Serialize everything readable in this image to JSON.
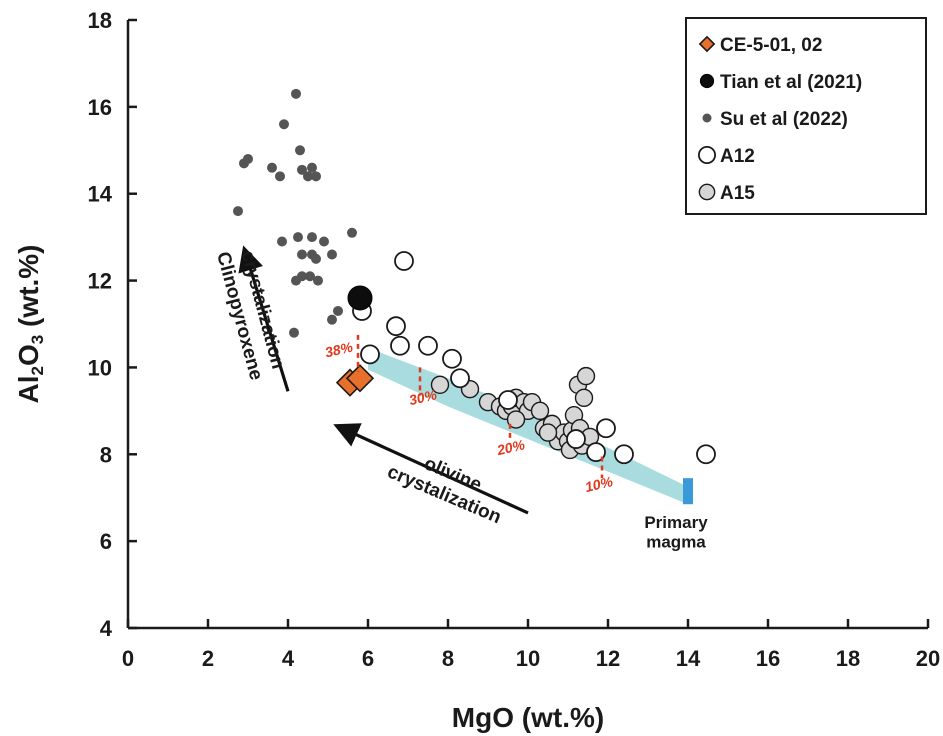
{
  "chart_data": {
    "type": "scatter",
    "xlabel": "MgO (wt.%)",
    "ylabel_main": "Al",
    "ylabel_sub": "2",
    "ylabel_mid": "O",
    "ylabel_sub2": "3",
    "ylabel_tail": " (wt.%)",
    "xlim": [
      0,
      20
    ],
    "ylim": [
      4,
      18
    ],
    "xticks": [
      0,
      2,
      4,
      6,
      8,
      10,
      12,
      14,
      16,
      18,
      20
    ],
    "yticks": [
      4,
      6,
      8,
      10,
      12,
      14,
      16,
      18
    ],
    "legend_position": "top-right",
    "series": [
      {
        "name": "CE-5-01, 02",
        "marker": "diamond",
        "color": "#e8702a",
        "points": [
          [
            5.55,
            9.65
          ],
          [
            5.8,
            9.75
          ]
        ]
      },
      {
        "name": "Tian et al (2021)",
        "marker": "circle-large",
        "color": "#0d0d0d",
        "points": [
          [
            5.8,
            11.6
          ]
        ]
      },
      {
        "name": "Su et al (2022)",
        "marker": "circle-small",
        "color": "#555555",
        "points": [
          [
            4.2,
            16.3
          ],
          [
            3.9,
            15.6
          ],
          [
            4.3,
            15.0
          ],
          [
            2.9,
            14.7
          ],
          [
            3.0,
            14.8
          ],
          [
            3.6,
            14.6
          ],
          [
            3.8,
            14.4
          ],
          [
            4.6,
            14.6
          ],
          [
            4.5,
            14.4
          ],
          [
            4.7,
            14.4
          ],
          [
            4.35,
            14.55
          ],
          [
            2.75,
            13.6
          ],
          [
            5.6,
            13.1
          ],
          [
            3.85,
            12.9
          ],
          [
            4.25,
            13.0
          ],
          [
            4.6,
            13.0
          ],
          [
            4.9,
            12.9
          ],
          [
            4.35,
            12.6
          ],
          [
            4.6,
            12.6
          ],
          [
            4.7,
            12.5
          ],
          [
            5.1,
            12.6
          ],
          [
            4.2,
            12.0
          ],
          [
            4.35,
            12.1
          ],
          [
            4.55,
            12.1
          ],
          [
            4.75,
            12.0
          ],
          [
            4.15,
            10.8
          ],
          [
            5.25,
            11.3
          ],
          [
            5.1,
            11.1
          ]
        ]
      },
      {
        "name": "A12",
        "marker": "circle-open",
        "color": "#ffffff",
        "points": [
          [
            6.9,
            12.45
          ],
          [
            5.85,
            11.3
          ],
          [
            6.7,
            10.95
          ],
          [
            6.05,
            10.3
          ],
          [
            6.8,
            10.5
          ],
          [
            7.5,
            10.5
          ],
          [
            8.1,
            10.2
          ],
          [
            8.3,
            9.75
          ],
          [
            9.5,
            9.25
          ],
          [
            11.2,
            8.35
          ],
          [
            11.7,
            8.05
          ],
          [
            11.95,
            8.6
          ],
          [
            12.4,
            8.0
          ],
          [
            14.45,
            8.0
          ]
        ]
      },
      {
        "name": "A15",
        "marker": "circle-gray",
        "color": "#d6d6d6",
        "points": [
          [
            7.8,
            9.6
          ],
          [
            8.55,
            9.5
          ],
          [
            9.0,
            9.2
          ],
          [
            9.3,
            9.1
          ],
          [
            9.45,
            9.0
          ],
          [
            9.6,
            9.1
          ],
          [
            9.7,
            9.3
          ],
          [
            9.9,
            9.2
          ],
          [
            10.0,
            9.0
          ],
          [
            10.1,
            9.2
          ],
          [
            10.3,
            9.0
          ],
          [
            10.4,
            8.6
          ],
          [
            10.6,
            8.7
          ],
          [
            10.75,
            8.3
          ],
          [
            10.9,
            8.5
          ],
          [
            11.0,
            8.3
          ],
          [
            11.05,
            8.1
          ],
          [
            11.1,
            8.55
          ],
          [
            11.15,
            8.9
          ],
          [
            11.25,
            9.6
          ],
          [
            11.3,
            8.6
          ],
          [
            11.35,
            8.2
          ],
          [
            11.4,
            9.3
          ],
          [
            11.45,
            9.8
          ],
          [
            11.55,
            8.4
          ],
          [
            9.7,
            8.8
          ],
          [
            10.5,
            8.5
          ]
        ]
      }
    ],
    "annotations": {
      "clinopyroxene_line1": "Clinopyroxene",
      "clinopyroxene_line2": "crystalization",
      "olivine_line1": "olivine",
      "olivine_line2": "crystalization",
      "primary_line1": "Primary",
      "primary_line2": "magma",
      "pct_38": "38%",
      "pct_30": "30%",
      "pct_20": "20%",
      "pct_10": "10%"
    },
    "trend_band": {
      "color": "#a9dcdf",
      "upper": [
        [
          6.0,
          10.45
        ],
        [
          8.0,
          9.75
        ],
        [
          10.0,
          9.0
        ],
        [
          12.0,
          8.15
        ],
        [
          14.0,
          7.25
        ]
      ],
      "lower": [
        [
          6.0,
          9.95
        ],
        [
          8.0,
          9.1
        ],
        [
          10.0,
          8.35
        ],
        [
          12.0,
          7.6
        ],
        [
          14.0,
          6.85
        ]
      ]
    },
    "primary_bar": {
      "color": "#3a9ad9",
      "x": 14.0,
      "y_low": 6.85,
      "y_high": 7.45
    },
    "fraction_markers": [
      {
        "x": 5.75,
        "y_low": 9.9,
        "y_high": 10.75,
        "label_key": "pct_38"
      },
      {
        "x": 7.3,
        "y_low": 9.35,
        "y_high": 10.0,
        "label_key": "pct_30"
      },
      {
        "x": 9.55,
        "y_low": 8.3,
        "y_high": 8.7,
        "label_key": "pct_20"
      },
      {
        "x": 11.85,
        "y_low": 7.45,
        "y_high": 7.95,
        "label_key": "pct_10"
      }
    ],
    "pct_color": "#e03a1e"
  }
}
